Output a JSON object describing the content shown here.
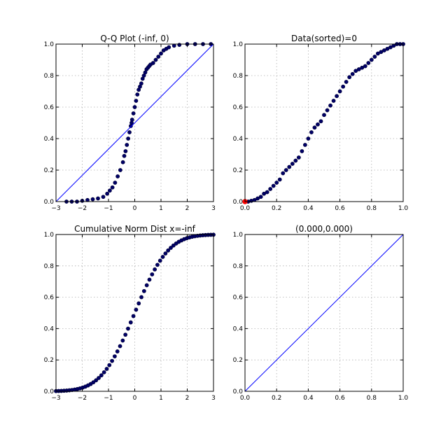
{
  "chart_data": [
    {
      "type": "scatter",
      "title": "Q-Q Plot (-inf, 0)",
      "xlabel": "",
      "ylabel": "",
      "xlim": [
        -3,
        3
      ],
      "ylim": [
        0,
        1
      ],
      "xticks": [
        "−3",
        "−2",
        "−1",
        "0",
        "1",
        "2",
        "3"
      ],
      "yticks": [
        "0.0",
        "0.2",
        "0.4",
        "0.6",
        "0.8",
        "1.0"
      ],
      "grid": true,
      "points_color": "#000066",
      "line_color": "#0000ff",
      "series": [
        {
          "kind": "points",
          "x": [
            -2.6,
            -2.4,
            -2.2,
            -2.0,
            -1.8,
            -1.6,
            -1.4,
            -1.2,
            -1.05,
            -0.95,
            -0.85,
            -0.75,
            -0.65,
            -0.55,
            -0.45,
            -0.4,
            -0.35,
            -0.3,
            -0.25,
            -0.2,
            -0.15,
            -0.12,
            -0.1,
            -0.05,
            0.0,
            0.05,
            0.1,
            0.15,
            0.2,
            0.25,
            0.3,
            0.35,
            0.4,
            0.45,
            0.5,
            0.55,
            0.6,
            0.7,
            0.8,
            0.9,
            1.0,
            1.1,
            1.2,
            1.3,
            1.5,
            1.7,
            2.0,
            2.3,
            2.6,
            2.9
          ],
          "y": [
            0.0,
            0.0,
            0.0,
            0.005,
            0.01,
            0.015,
            0.02,
            0.03,
            0.05,
            0.07,
            0.09,
            0.12,
            0.16,
            0.2,
            0.25,
            0.29,
            0.32,
            0.36,
            0.4,
            0.44,
            0.48,
            0.5,
            0.52,
            0.56,
            0.6,
            0.64,
            0.68,
            0.71,
            0.73,
            0.75,
            0.78,
            0.8,
            0.82,
            0.84,
            0.85,
            0.86,
            0.87,
            0.88,
            0.9,
            0.92,
            0.94,
            0.96,
            0.97,
            0.98,
            0.99,
            0.995,
            1.0,
            1.0,
            1.0,
            1.0
          ]
        },
        {
          "kind": "line",
          "x": [
            -3,
            3
          ],
          "y": [
            0.0,
            1.0
          ]
        }
      ]
    },
    {
      "type": "scatter",
      "title": "Data(sorted)=0",
      "xlabel": "",
      "ylabel": "",
      "xlim": [
        0,
        1
      ],
      "ylim": [
        0,
        1
      ],
      "xticks": [
        "0.0",
        "0.2",
        "0.4",
        "0.6",
        "0.8",
        "1.0"
      ],
      "yticks": [
        "0.0",
        "0.2",
        "0.4",
        "0.6",
        "0.8",
        "1.0"
      ],
      "grid": true,
      "points_color": "#000066",
      "highlight_color": "#ff0000",
      "highlight_point": {
        "x": 0.0,
        "y": 0.0
      },
      "series": [
        {
          "kind": "points",
          "x": [
            0.0,
            0.02,
            0.04,
            0.06,
            0.08,
            0.1,
            0.12,
            0.14,
            0.16,
            0.18,
            0.2,
            0.22,
            0.24,
            0.26,
            0.28,
            0.3,
            0.32,
            0.34,
            0.36,
            0.38,
            0.4,
            0.42,
            0.44,
            0.46,
            0.48,
            0.5,
            0.52,
            0.54,
            0.56,
            0.58,
            0.6,
            0.62,
            0.64,
            0.66,
            0.68,
            0.7,
            0.72,
            0.74,
            0.76,
            0.78,
            0.8,
            0.82,
            0.84,
            0.86,
            0.88,
            0.9,
            0.92,
            0.94,
            0.96,
            0.98,
            1.0
          ],
          "y": [
            0.0,
            0.0,
            0.005,
            0.01,
            0.02,
            0.03,
            0.05,
            0.06,
            0.08,
            0.1,
            0.12,
            0.14,
            0.18,
            0.2,
            0.22,
            0.24,
            0.26,
            0.28,
            0.32,
            0.36,
            0.4,
            0.44,
            0.47,
            0.49,
            0.51,
            0.55,
            0.58,
            0.61,
            0.64,
            0.67,
            0.7,
            0.73,
            0.76,
            0.79,
            0.81,
            0.83,
            0.84,
            0.85,
            0.86,
            0.88,
            0.9,
            0.92,
            0.94,
            0.95,
            0.96,
            0.97,
            0.98,
            0.99,
            1.0,
            1.0,
            1.0
          ]
        }
      ]
    },
    {
      "type": "scatter",
      "title": "Cumulative Norm Dist x=-inf",
      "xlabel": "",
      "ylabel": "",
      "xlim": [
        -3,
        3
      ],
      "ylim": [
        0,
        1
      ],
      "xticks": [
        "−3",
        "−2",
        "−1",
        "0",
        "1",
        "2",
        "3"
      ],
      "yticks": [
        "0.0",
        "0.2",
        "0.4",
        "0.6",
        "0.8",
        "1.0"
      ],
      "grid": true,
      "points_color": "#000066",
      "series": [
        {
          "kind": "cdf",
          "x_start": -3,
          "x_end": 3,
          "count": 60
        }
      ]
    },
    {
      "type": "line",
      "title": "(0.000,0.000)",
      "xlabel": "",
      "ylabel": "",
      "xlim": [
        0,
        1
      ],
      "ylim": [
        0,
        1
      ],
      "xticks": [
        "0.0",
        "0.2",
        "0.4",
        "0.6",
        "0.8",
        "1.0"
      ],
      "yticks": [
        "0.0",
        "0.2",
        "0.4",
        "0.6",
        "0.8",
        "1.0"
      ],
      "grid": true,
      "line_color": "#0000ff",
      "series": [
        {
          "kind": "line",
          "x": [
            0,
            1
          ],
          "y": [
            0,
            1
          ]
        }
      ]
    }
  ]
}
